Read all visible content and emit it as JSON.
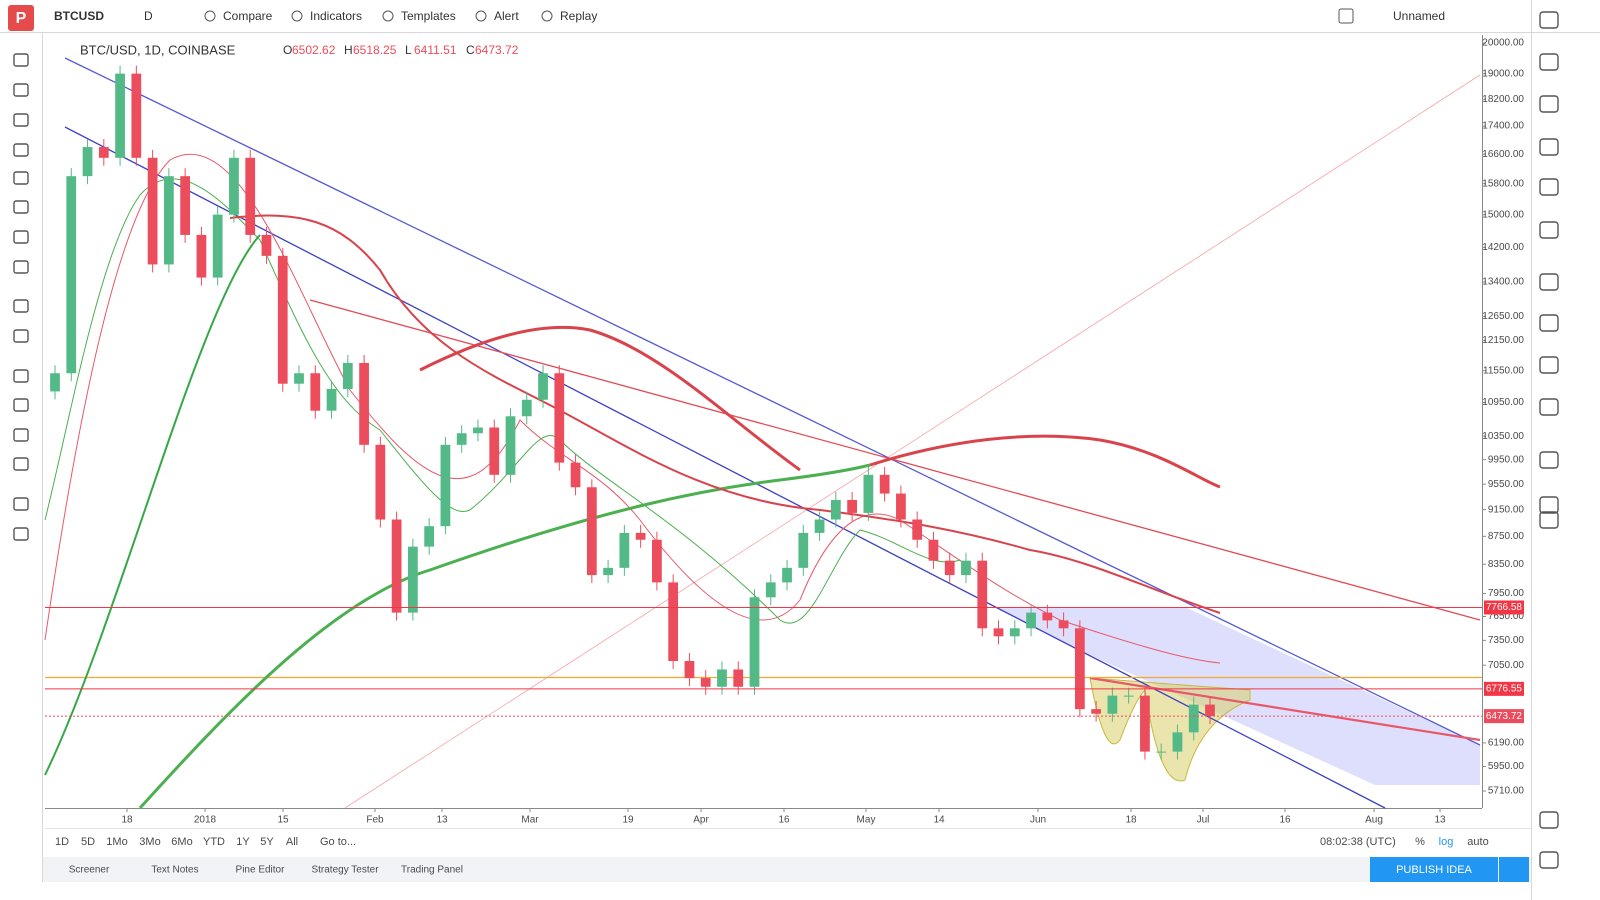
{
  "toolbar": {
    "symbol": "BTCUSD",
    "interval": "D",
    "items": [
      "Compare",
      "Indicators",
      "Templates",
      "Alert",
      "Replay"
    ],
    "layout": "Unnamed"
  },
  "chart_data": {
    "type": "candlestick",
    "title": "BTC/USD, 1D, COINBASE",
    "ohlc": [
      {
        "label": "O",
        "value": 6502.62
      },
      {
        "label": "H",
        "value": 6518.25
      },
      {
        "label": "L",
        "value": 6411.51
      },
      {
        "label": "C",
        "value": 6473.72
      }
    ],
    "closes": [
      11500,
      16000,
      16800,
      16500,
      19000,
      16500,
      13800,
      16000,
      14500,
      13500,
      15000,
      16500,
      14500,
      14000,
      11300,
      11500,
      10800,
      11200,
      11700,
      10200,
      9000,
      7700,
      8600,
      8900,
      10200,
      10400,
      10500,
      9700,
      10700,
      11000,
      11500,
      9900,
      9500,
      8200,
      8300,
      8800,
      8700,
      8100,
      7100,
      6900,
      6800,
      7000,
      6800,
      7900,
      8100,
      8300,
      8800,
      9000,
      9300,
      9100,
      9700,
      9400,
      9000,
      8700,
      8400,
      8200,
      8400,
      7500,
      7400,
      7500,
      7700,
      7600,
      7500,
      6550,
      6500,
      6700,
      6700,
      6100,
      6100,
      6300,
      6600,
      6473.72
    ],
    "up_color": "#53b987",
    "down_color": "#eb4d5c",
    "log": true,
    "ylim": [
      5550,
      20270
    ],
    "yticks": [
      {
        "value": 20000,
        "label": "20000.00"
      },
      {
        "value": 19000,
        "label": "19000.00"
      },
      {
        "value": 18200,
        "label": "18200.00"
      },
      {
        "value": 17400,
        "label": "17400.00"
      },
      {
        "value": 16600,
        "label": "16600.00"
      },
      {
        "value": 15800,
        "label": "15800.00"
      },
      {
        "value": 15000,
        "label": "15000.00"
      },
      {
        "value": 14200,
        "label": "14200.00"
      },
      {
        "value": 13400,
        "label": "13400.00"
      },
      {
        "value": 12650,
        "label": "12650.00"
      },
      {
        "value": 12150,
        "label": "12150.00"
      },
      {
        "value": 11550,
        "label": "11550.00"
      },
      {
        "value": 10950,
        "label": "10950.00"
      },
      {
        "value": 10350,
        "label": "10350.00"
      },
      {
        "value": 9950,
        "label": "9950.00"
      },
      {
        "value": 9550,
        "label": "9550.00"
      },
      {
        "value": 9150,
        "label": "9150.00"
      },
      {
        "value": 8750,
        "label": "8750.00"
      },
      {
        "value": 8350,
        "label": "8350.00"
      },
      {
        "value": 7950,
        "label": "7950.00"
      },
      {
        "value": 7650,
        "label": "7650.00"
      },
      {
        "value": 7350,
        "label": "7350.00"
      },
      {
        "value": 7050,
        "label": "7050.00"
      },
      {
        "value": 6190,
        "label": "6190.00"
      },
      {
        "value": 5950,
        "label": "5950.00"
      },
      {
        "value": 5710,
        "label": "5710.00"
      }
    ],
    "price_lines": [
      {
        "value": 7766.58,
        "color": "#f23645"
      },
      {
        "value": 6776.55,
        "color": "#f23645"
      },
      {
        "value": 6473.72,
        "color": "#eb4d5c"
      }
    ],
    "xlabels": [
      "18",
      "2018",
      "15",
      "Feb",
      "13",
      "Mar",
      "19",
      "Apr",
      "16",
      "May",
      "14",
      "Jun",
      "18",
      "Jul",
      "16",
      "Aug",
      "13"
    ]
  },
  "range_buttons": [
    "1D",
    "5D",
    "1Mo",
    "3Mo",
    "6Mo",
    "YTD",
    "1Y",
    "5Y",
    "All"
  ],
  "goto": "Go to...",
  "clock": "08:02:38 (UTC)",
  "scale_options": [
    "%",
    "log",
    "auto"
  ],
  "tabs": [
    "Screener",
    "Text Notes",
    "Pine Editor",
    "Strategy Tester",
    "Trading Panel"
  ],
  "publish": "PUBLISH IDEA"
}
